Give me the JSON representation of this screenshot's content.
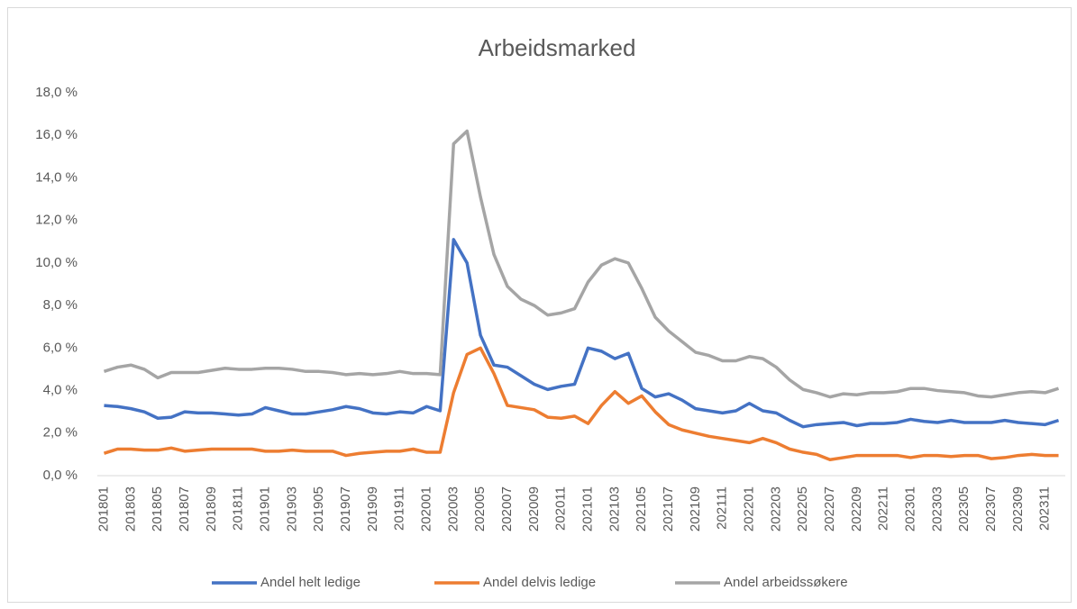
{
  "chart_data": {
    "type": "line",
    "title": "Arbeidsmarked",
    "categories": [
      "201801",
      null,
      "201803",
      null,
      "201805",
      null,
      "201807",
      null,
      "201809",
      null,
      "201811",
      null,
      "201901",
      null,
      "201903",
      null,
      "201905",
      null,
      "201907",
      null,
      "201909",
      null,
      "201911",
      null,
      "202001",
      null,
      "202003",
      null,
      "202005",
      null,
      "202007",
      null,
      "202009",
      null,
      "202011",
      null,
      "202101",
      null,
      "202103",
      null,
      "202105",
      null,
      "202107",
      null,
      "202109",
      null,
      "202111",
      null,
      "202201",
      null,
      "202203",
      null,
      "202205",
      null,
      "202207",
      null,
      "202209",
      null,
      "202211",
      null,
      "202301",
      null,
      "202303",
      null,
      "202305",
      null,
      "202307",
      null,
      "202309",
      null,
      "202311",
      null
    ],
    "series": [
      {
        "name": "Andel helt ledige",
        "color": "#4472c4",
        "values": [
          3.3,
          3.25,
          3.15,
          3.0,
          2.7,
          2.75,
          3.0,
          2.95,
          2.95,
          2.9,
          2.85,
          2.9,
          3.2,
          3.05,
          2.9,
          2.9,
          3.0,
          3.1,
          3.25,
          3.15,
          2.95,
          2.9,
          3.0,
          2.95,
          3.25,
          3.05,
          11.1,
          10.0,
          6.6,
          5.2,
          5.1,
          4.7,
          4.3,
          4.05,
          4.2,
          4.3,
          6.0,
          5.85,
          5.5,
          5.75,
          4.1,
          3.7,
          3.85,
          3.55,
          3.15,
          3.05,
          2.95,
          3.05,
          3.4,
          3.05,
          2.95,
          2.6,
          2.3,
          2.4,
          2.45,
          2.5,
          2.35,
          2.45,
          2.45,
          2.5,
          2.65,
          2.55,
          2.5,
          2.6,
          2.5,
          2.5,
          2.5,
          2.6,
          2.5,
          2.45,
          2.4,
          2.6
        ]
      },
      {
        "name": "Andel delvis ledige",
        "color": "#ed7d31",
        "values": [
          1.05,
          1.25,
          1.25,
          1.2,
          1.2,
          1.3,
          1.15,
          1.2,
          1.25,
          1.25,
          1.25,
          1.25,
          1.15,
          1.15,
          1.2,
          1.15,
          1.15,
          1.15,
          0.95,
          1.05,
          1.1,
          1.15,
          1.15,
          1.25,
          1.1,
          1.1,
          3.9,
          5.7,
          6.0,
          4.8,
          3.3,
          3.2,
          3.1,
          2.75,
          2.7,
          2.8,
          2.45,
          3.3,
          3.95,
          3.4,
          3.75,
          3.0,
          2.4,
          2.15,
          2.0,
          1.85,
          1.75,
          1.65,
          1.55,
          1.75,
          1.55,
          1.25,
          1.1,
          1.0,
          0.75,
          0.85,
          0.95,
          0.95,
          0.95,
          0.95,
          0.85,
          0.95,
          0.95,
          0.9,
          0.95,
          0.95,
          0.8,
          0.85,
          0.95,
          1.0,
          0.95,
          0.95
        ]
      },
      {
        "name": "Andel arbeidssøkere",
        "color": "#a5a5a5",
        "values": [
          4.9,
          5.1,
          5.2,
          5.0,
          4.6,
          4.85,
          4.85,
          4.85,
          4.95,
          5.05,
          5.0,
          5.0,
          5.05,
          5.05,
          5.0,
          4.9,
          4.9,
          4.85,
          4.75,
          4.8,
          4.75,
          4.8,
          4.9,
          4.8,
          4.8,
          4.75,
          15.6,
          16.2,
          13.1,
          10.4,
          8.9,
          8.3,
          8.0,
          7.55,
          7.65,
          7.85,
          9.1,
          9.9,
          10.2,
          10.0,
          8.8,
          7.45,
          6.8,
          6.3,
          5.8,
          5.65,
          5.4,
          5.4,
          5.6,
          5.5,
          5.1,
          4.5,
          4.05,
          3.9,
          3.7,
          3.85,
          3.8,
          3.9,
          3.9,
          3.95,
          4.1,
          4.1,
          4.0,
          3.95,
          3.9,
          3.75,
          3.7,
          3.8,
          3.9,
          3.95,
          3.9,
          4.1
        ]
      }
    ],
    "ylim": [
      0,
      18
    ],
    "yticks": [
      {
        "value": 0,
        "label": "0,0 %"
      },
      {
        "value": 2,
        "label": "2,0 %"
      },
      {
        "value": 4,
        "label": "4,0 %"
      },
      {
        "value": 6,
        "label": "6,0 %"
      },
      {
        "value": 8,
        "label": "8,0 %"
      },
      {
        "value": 10,
        "label": "10,0 %"
      },
      {
        "value": 12,
        "label": "12,0 %"
      },
      {
        "value": 14,
        "label": "14,0 %"
      },
      {
        "value": 16,
        "label": "16,0 %"
      },
      {
        "value": 18,
        "label": "18,0 %"
      }
    ],
    "legend": "bottom"
  }
}
